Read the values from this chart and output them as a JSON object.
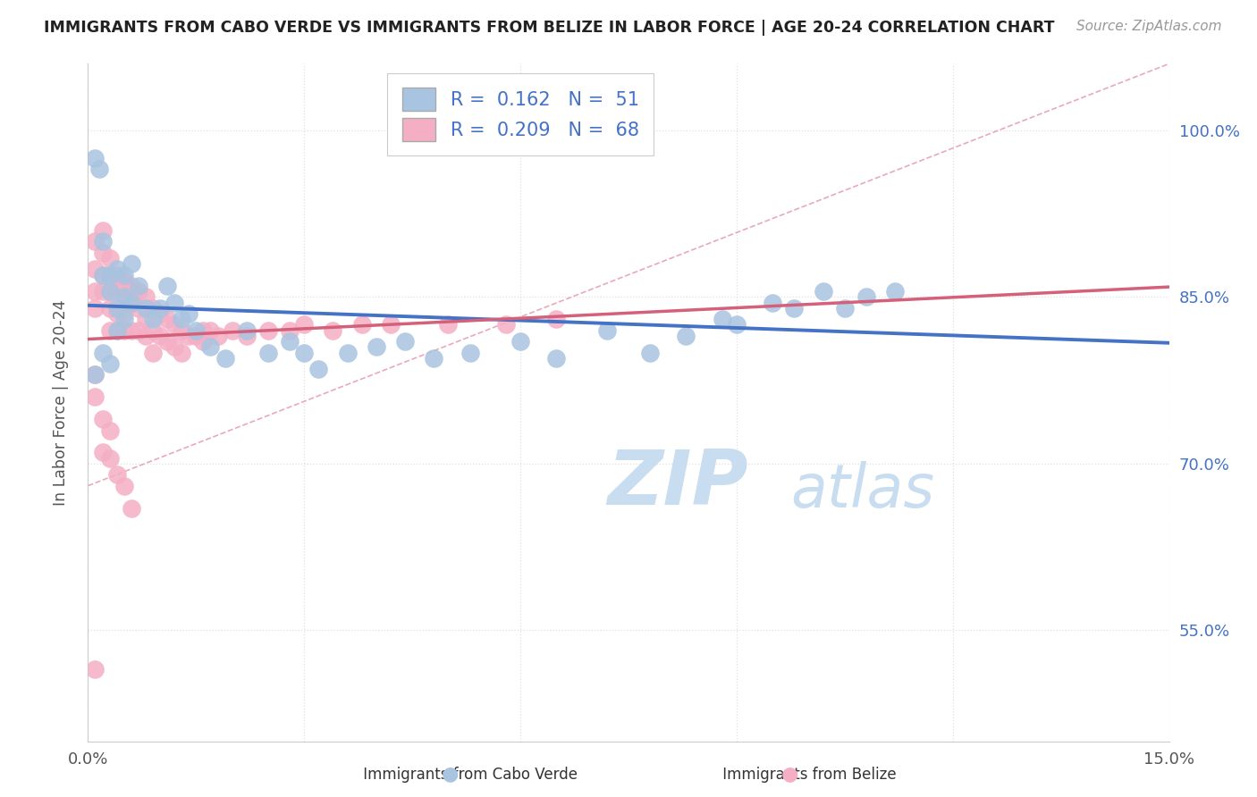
{
  "title": "IMMIGRANTS FROM CABO VERDE VS IMMIGRANTS FROM BELIZE IN LABOR FORCE | AGE 20-24 CORRELATION CHART",
  "source": "Source: ZipAtlas.com",
  "ylabel": "In Labor Force | Age 20-24",
  "xlim": [
    0.0,
    0.15
  ],
  "ylim": [
    0.45,
    1.06
  ],
  "cabo_verde_color": "#a8c4e0",
  "belize_color": "#f4afc5",
  "cabo_verde_line_color": "#4472c4",
  "belize_line_color": "#d4607a",
  "diag_line_color": "#e8a0b0",
  "R_cabo": 0.162,
  "N_cabo": 51,
  "R_belize": 0.209,
  "N_belize": 68,
  "watermark_color": "#c8ddf0",
  "background_color": "#ffffff",
  "grid_color": "#e0e0e0",
  "right_label_color": "#4472c4",
  "title_color": "#222222",
  "source_color": "#999999",
  "legend_text_color": "#4472c4",
  "cabo_verde_x": [
    0.001,
    0.0015,
    0.002,
    0.002,
    0.003,
    0.003,
    0.004,
    0.004,
    0.005,
    0.005,
    0.006,
    0.006,
    0.007,
    0.008,
    0.009,
    0.01,
    0.011,
    0.012,
    0.013,
    0.014,
    0.015,
    0.017,
    0.019,
    0.022,
    0.025,
    0.028,
    0.03,
    0.032,
    0.036,
    0.04,
    0.044,
    0.048,
    0.053,
    0.06,
    0.065,
    0.072,
    0.078,
    0.083,
    0.088,
    0.09,
    0.095,
    0.098,
    0.102,
    0.105,
    0.108,
    0.112,
    0.001,
    0.002,
    0.003,
    0.004,
    0.005
  ],
  "cabo_verde_y": [
    0.975,
    0.965,
    0.9,
    0.87,
    0.87,
    0.855,
    0.875,
    0.84,
    0.87,
    0.85,
    0.88,
    0.845,
    0.86,
    0.84,
    0.83,
    0.84,
    0.86,
    0.845,
    0.83,
    0.835,
    0.82,
    0.805,
    0.795,
    0.82,
    0.8,
    0.81,
    0.8,
    0.785,
    0.8,
    0.805,
    0.81,
    0.795,
    0.8,
    0.81,
    0.795,
    0.82,
    0.8,
    0.815,
    0.83,
    0.825,
    0.845,
    0.84,
    0.855,
    0.84,
    0.85,
    0.855,
    0.78,
    0.8,
    0.79,
    0.82,
    0.83
  ],
  "belize_x": [
    0.001,
    0.001,
    0.001,
    0.001,
    0.002,
    0.002,
    0.002,
    0.002,
    0.003,
    0.003,
    0.003,
    0.003,
    0.003,
    0.004,
    0.004,
    0.004,
    0.004,
    0.005,
    0.005,
    0.005,
    0.005,
    0.006,
    0.006,
    0.006,
    0.007,
    0.007,
    0.007,
    0.008,
    0.008,
    0.008,
    0.009,
    0.009,
    0.009,
    0.01,
    0.01,
    0.011,
    0.011,
    0.012,
    0.012,
    0.013,
    0.013,
    0.014,
    0.015,
    0.016,
    0.017,
    0.018,
    0.02,
    0.022,
    0.025,
    0.028,
    0.03,
    0.034,
    0.038,
    0.042,
    0.05,
    0.058,
    0.065,
    0.001,
    0.001,
    0.002,
    0.002,
    0.003,
    0.003,
    0.004,
    0.005,
    0.006,
    0.016,
    0.001
  ],
  "belize_y": [
    0.9,
    0.875,
    0.855,
    0.84,
    0.91,
    0.89,
    0.87,
    0.855,
    0.885,
    0.87,
    0.855,
    0.84,
    0.82,
    0.87,
    0.855,
    0.835,
    0.82,
    0.865,
    0.85,
    0.835,
    0.82,
    0.86,
    0.845,
    0.82,
    0.855,
    0.84,
    0.82,
    0.85,
    0.83,
    0.815,
    0.84,
    0.82,
    0.8,
    0.835,
    0.815,
    0.83,
    0.81,
    0.825,
    0.805,
    0.82,
    0.8,
    0.815,
    0.815,
    0.81,
    0.82,
    0.815,
    0.82,
    0.815,
    0.82,
    0.82,
    0.825,
    0.82,
    0.825,
    0.825,
    0.825,
    0.825,
    0.83,
    0.78,
    0.76,
    0.74,
    0.71,
    0.73,
    0.705,
    0.69,
    0.68,
    0.66,
    0.82,
    0.515
  ]
}
